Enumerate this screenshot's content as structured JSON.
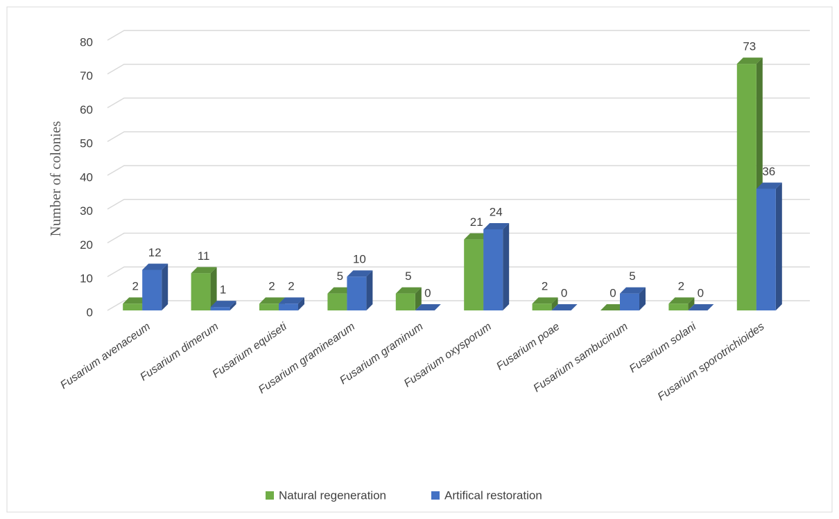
{
  "chart_data": {
    "type": "bar3d",
    "y_label": "Number of colonies",
    "categories": [
      "Fusarium avenaceum",
      "Fusarium dimerum",
      "Fusarium equiseti",
      "Fusarium graminearum",
      "Fusarium graminum",
      "Fusarium oxysporum",
      "Fusarium poae",
      "Fusarium sambucinum",
      "Fusarium solani",
      "Fusarium sporotrichioides"
    ],
    "series": [
      {
        "name": "Natural regeneration",
        "color": "#70ad47",
        "values": [
          2,
          11,
          2,
          5,
          5,
          21,
          2,
          0,
          2,
          73
        ]
      },
      {
        "name": "Artifical restoration",
        "color": "#4472c4",
        "values": [
          12,
          1,
          2,
          10,
          0,
          24,
          0,
          5,
          0,
          36
        ]
      }
    ],
    "ylim": [
      0,
      80
    ],
    "yticks": [
      0,
      10,
      20,
      30,
      40,
      50,
      60,
      70,
      80
    ],
    "grid": true,
    "legend": "bottom"
  }
}
